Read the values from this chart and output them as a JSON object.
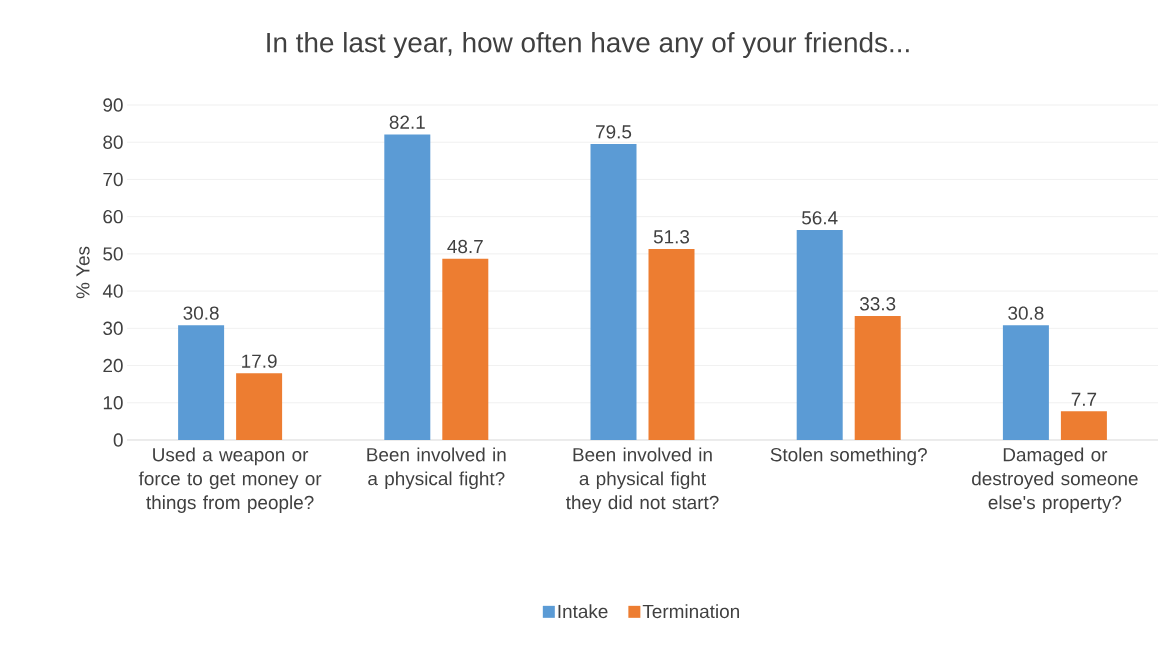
{
  "chart_data": {
    "type": "bar",
    "title": "In the last year, how often have any of your friends...",
    "ylabel": "% Yes",
    "categories": [
      "Used a weapon or force to get money or things from people?",
      "Been involved in a physical fight?",
      "Been involved in a physical fight they did not start?",
      "Stolen something?",
      "Damaged or destroyed someone else's property?"
    ],
    "series": [
      {
        "name": "Intake",
        "color": "#5b9bd5",
        "values": [
          30.8,
          82.1,
          79.5,
          56.4,
          30.8
        ]
      },
      {
        "name": "Termination",
        "color": "#ed7d31",
        "values": [
          17.9,
          48.7,
          51.3,
          33.3,
          7.7
        ]
      }
    ],
    "ylim": [
      0,
      90
    ],
    "yticks": [
      0,
      10,
      20,
      30,
      40,
      50,
      60,
      70,
      80,
      90
    ],
    "grid": "y",
    "legend": "bottom",
    "data_labels": true
  }
}
